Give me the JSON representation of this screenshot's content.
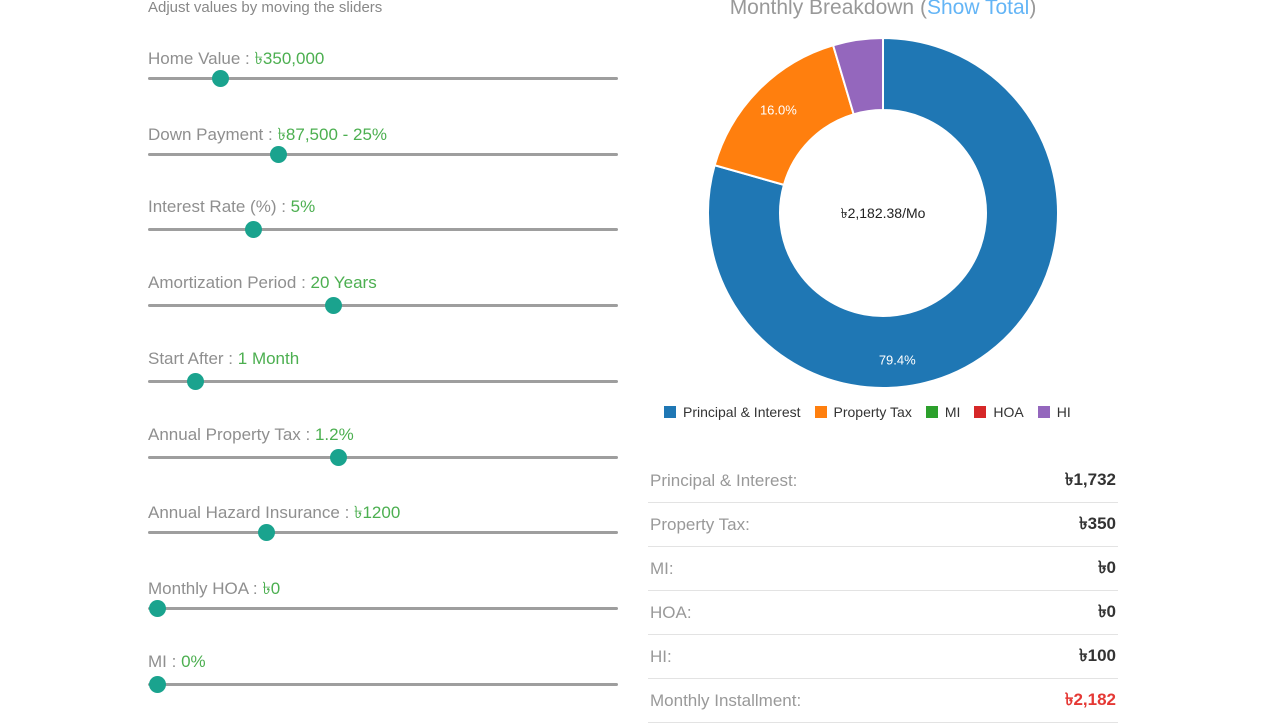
{
  "instructions": "Adjust values by moving the sliders",
  "sliders": [
    {
      "label": "Home Value : ",
      "value": "৳350,000",
      "level": 0.153
    },
    {
      "label": "Down Payment : ",
      "value": "৳87,500 - 25%",
      "level": 0.277
    },
    {
      "label": "Interest Rate (%) : ",
      "value": "5%",
      "level": 0.223
    },
    {
      "label": "Amortization Period : ",
      "value": "20 Years",
      "level": 0.394
    },
    {
      "label": "Start After : ",
      "value": "1 Month",
      "level": 0.1
    },
    {
      "label": "Annual Property Tax : ",
      "value": "1.2%",
      "level": 0.404
    },
    {
      "label": "Annual Hazard Insurance : ",
      "value": "৳1200",
      "level": 0.251
    },
    {
      "label": "Monthly HOA : ",
      "value": "৳0",
      "level": 0.02
    },
    {
      "label": "MI : ",
      "value": "0%",
      "level": 0.02
    }
  ],
  "chart": {
    "title": "Monthly Breakdown (",
    "title_link": "Show Total",
    "title_end": ")",
    "center_text": "৳2,182.38/Mo",
    "colors": {
      "principal": "#1f77b4",
      "tax": "#ff7f0e",
      "mi": "#2ca02c",
      "hoa": "#d62728",
      "hi": "#9467bd"
    }
  },
  "chart_data": {
    "type": "pie",
    "categories": [
      "Principal & Interest",
      "Property Tax",
      "MI",
      "HOA",
      "HI"
    ],
    "values": [
      79.4,
      16.0,
      0,
      0,
      4.6
    ],
    "data_labels": [
      "79.4%",
      "16.0%",
      "",
      "",
      ""
    ],
    "legend_placement": "bottom"
  },
  "summary": [
    {
      "label": "Principal & Interest:",
      "value": "৳1,732"
    },
    {
      "label": "Property Tax:",
      "value": "৳350"
    },
    {
      "label": "MI:",
      "value": "৳0"
    },
    {
      "label": "HOA:",
      "value": "৳0"
    },
    {
      "label": "HI:",
      "value": "৳100"
    },
    {
      "label": "Monthly Installment:",
      "value": "৳2,182",
      "total": true
    }
  ]
}
